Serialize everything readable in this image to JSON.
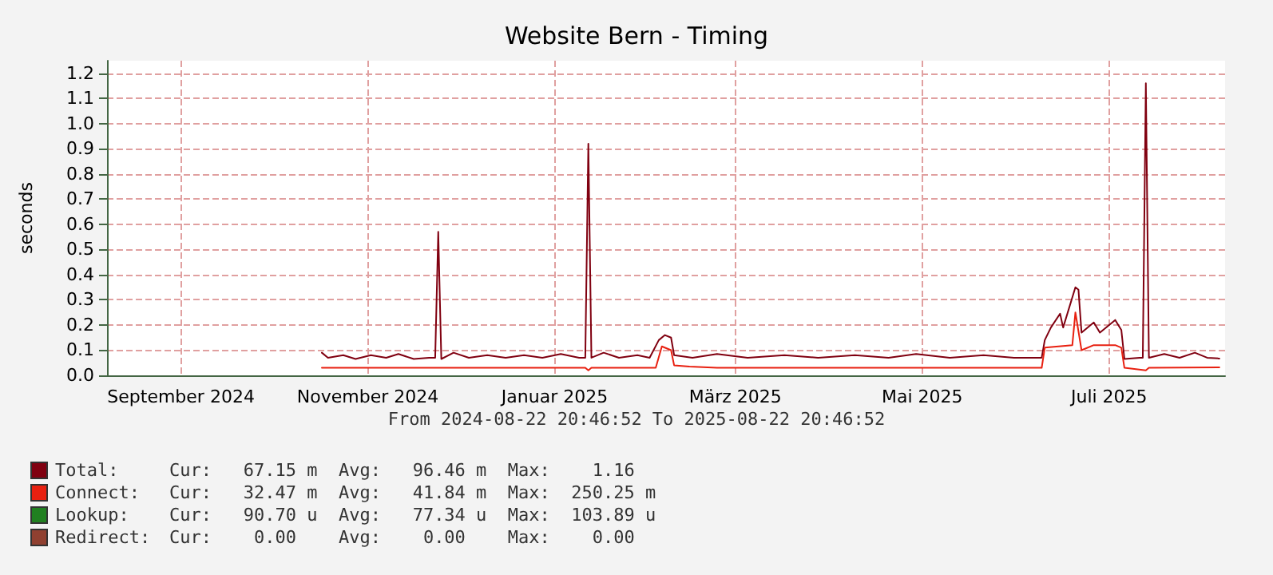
{
  "chart_data": {
    "type": "line",
    "title": "Website Bern - Timing",
    "ylabel": "seconds",
    "xlim": [
      "2024-08-22T20:46",
      "2025-08-22T20:46"
    ],
    "xticks": [
      {
        "value": "2024-09-16",
        "label": "September 2024"
      },
      {
        "value": "2024-11-16",
        "label": "November 2024"
      },
      {
        "value": "2025-01-16",
        "label": "Januar 2025"
      },
      {
        "value": "2025-03-16",
        "label": "März 2025"
      },
      {
        "value": "2025-05-16",
        "label": "Mai 2025"
      },
      {
        "value": "2025-07-16",
        "label": "Juli 2025"
      }
    ],
    "ylim": [
      0,
      1.25
    ],
    "yticks": [
      {
        "value": 0,
        "label": "0.0"
      },
      {
        "value": 0.1,
        "label": "0.1"
      },
      {
        "value": 0.2,
        "label": "0.2"
      },
      {
        "value": 0.3,
        "label": "0.3"
      },
      {
        "value": 0.4,
        "label": "0.4"
      },
      {
        "value": 0.5,
        "label": "0.5"
      },
      {
        "value": 0.6,
        "label": "0.6"
      },
      {
        "value": 0.7,
        "label": "0.7"
      },
      {
        "value": 0.8,
        "label": "0.8"
      },
      {
        "value": 0.9,
        "label": "0.9"
      },
      {
        "value": 1,
        "label": "1.0"
      },
      {
        "value": 1.1,
        "label": "1.1"
      },
      {
        "value": 1.2,
        "label": "1.2"
      }
    ],
    "grid": true,
    "legend": "bottom left",
    "marker": "none",
    "line_style": "solid",
    "series": [
      {
        "name": "Total:",
        "color": "#800010",
        "x": [
          "2024-11-01",
          "2024-11-03",
          "2024-11-08",
          "2024-11-12",
          "2024-11-17",
          "2024-11-22",
          "2024-11-26",
          "2024-12-01",
          "2024-12-06",
          "2024-12-08",
          "2024-12-09",
          "2024-12-10",
          "2024-12-14",
          "2024-12-19",
          "2024-12-25",
          "2024-12-31",
          "2025-01-06",
          "2025-01-12",
          "2025-01-18",
          "2025-01-24",
          "2025-01-26",
          "2025-01-27",
          "2025-01-28",
          "2025-02-01",
          "2025-02-06",
          "2025-02-12",
          "2025-02-16",
          "2025-02-19",
          "2025-02-21",
          "2025-02-23",
          "2025-02-24",
          "2025-03-02",
          "2025-03-10",
          "2025-03-20",
          "2025-04-01",
          "2025-04-12",
          "2025-04-24",
          "2025-05-05",
          "2025-05-14",
          "2025-05-25",
          "2025-06-05",
          "2025-06-15",
          "2025-06-24",
          "2025-06-25",
          "2025-06-27",
          "2025-06-30",
          "2025-07-01",
          "2025-07-05",
          "2025-07-06",
          "2025-07-07",
          "2025-07-11",
          "2025-07-13",
          "2025-07-18",
          "2025-07-20",
          "2025-07-21",
          "2025-07-26",
          "2025-07-27",
          "2025-07-28",
          "2025-07-29",
          "2025-08-03",
          "2025-08-08",
          "2025-08-13",
          "2025-08-17",
          "2025-08-21"
        ],
        "values": [
          0.09,
          0.07,
          0.08,
          0.065,
          0.08,
          0.07,
          0.085,
          0.065,
          0.07,
          0.07,
          0.57,
          0.065,
          0.09,
          0.07,
          0.08,
          0.07,
          0.08,
          0.07,
          0.085,
          0.07,
          0.07,
          0.92,
          0.07,
          0.09,
          0.07,
          0.08,
          0.07,
          0.14,
          0.16,
          0.15,
          0.08,
          0.07,
          0.085,
          0.07,
          0.08,
          0.07,
          0.08,
          0.07,
          0.085,
          0.07,
          0.08,
          0.07,
          0.07,
          0.14,
          0.19,
          0.245,
          0.19,
          0.35,
          0.34,
          0.17,
          0.21,
          0.17,
          0.22,
          0.18,
          0.065,
          0.07,
          0.07,
          1.16,
          0.07,
          0.085,
          0.07,
          0.09,
          0.07,
          0.067
        ]
      },
      {
        "name": "Connect:",
        "color": "#e82010",
        "x": [
          "2024-11-01",
          "2025-01-26",
          "2025-01-27",
          "2025-01-28",
          "2025-02-18",
          "2025-02-20",
          "2025-02-23",
          "2025-02-24",
          "2025-03-01",
          "2025-03-10",
          "2025-06-24",
          "2025-06-25",
          "2025-07-04",
          "2025-07-05",
          "2025-07-07",
          "2025-07-11",
          "2025-07-18",
          "2025-07-20",
          "2025-07-21",
          "2025-07-28",
          "2025-07-29",
          "2025-08-21"
        ],
        "values": [
          0.03,
          0.03,
          0.02,
          0.03,
          0.03,
          0.115,
          0.1,
          0.04,
          0.035,
          0.03,
          0.03,
          0.11,
          0.12,
          0.25,
          0.1,
          0.12,
          0.12,
          0.11,
          0.03,
          0.02,
          0.03,
          0.032
        ]
      },
      {
        "name": "Lookup:",
        "color": "#208020"
      },
      {
        "name": "Redirect:",
        "color": "#904030"
      }
    ],
    "annotations": [
      "From 2024-08-22 20:46:52 To 2025-08-22 20:46:52",
      "Cur:   67.15 m  Avg:   96.46 m  Max:    1.16",
      "Cur:   32.47 m  Avg:   41.84 m  Max:  250.25 m",
      "Cur:   90.70 u  Avg:   77.34 u  Max:  103.89 u",
      "Cur:    0.00    Avg:    0.00    Max:    0.00"
    ]
  }
}
